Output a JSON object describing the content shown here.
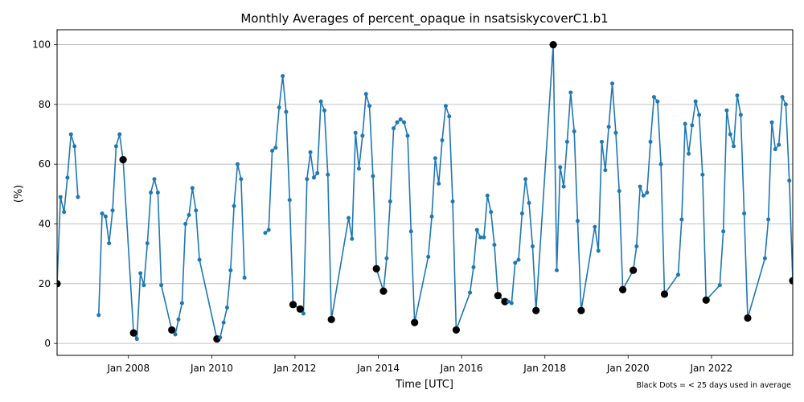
{
  "chart_data": {
    "type": "line",
    "title": "Monthly Averages of percent_opaque in nsatsiskycoverC1.b1",
    "xlabel": "Time [UTC]",
    "ylabel": "(%)",
    "note": "Black Dots = < 25 days used in average",
    "xlim": [
      "2006-04-15",
      "2023-12-15"
    ],
    "ylim": [
      -4,
      105
    ],
    "grid": "horizontal",
    "x_ticks": [
      {
        "date": "2008-01-01",
        "label": "Jan 2008"
      },
      {
        "date": "2010-01-01",
        "label": "Jan 2010"
      },
      {
        "date": "2012-01-01",
        "label": "Jan 2012"
      },
      {
        "date": "2014-01-01",
        "label": "Jan 2014"
      },
      {
        "date": "2016-01-01",
        "label": "Jan 2016"
      },
      {
        "date": "2018-01-01",
        "label": "Jan 2018"
      },
      {
        "date": "2020-01-01",
        "label": "Jan 2020"
      },
      {
        "date": "2022-01-01",
        "label": "Jan 2022"
      }
    ],
    "y_ticks": [
      0,
      20,
      40,
      60,
      80,
      100
    ],
    "line_color": "#1f77b4",
    "flag_color": "#000000",
    "series": [
      {
        "segment": [
          {
            "x": "2006-04-15",
            "y": 20.0,
            "flag": true
          },
          {
            "x": "2006-05-15",
            "y": 49.0
          },
          {
            "x": "2006-06-15",
            "y": 44.0
          },
          {
            "x": "2006-07-15",
            "y": 55.5
          },
          {
            "x": "2006-08-15",
            "y": 70.0
          },
          {
            "x": "2006-09-15",
            "y": 66.0
          },
          {
            "x": "2006-10-15",
            "y": 49.0
          }
        ]
      },
      {
        "segment": [
          {
            "x": "2007-04-15",
            "y": 9.5
          },
          {
            "x": "2007-05-15",
            "y": 43.5
          },
          {
            "x": "2007-06-15",
            "y": 42.5
          },
          {
            "x": "2007-07-15",
            "y": 33.5
          },
          {
            "x": "2007-08-15",
            "y": 44.5
          },
          {
            "x": "2007-09-15",
            "y": 66.0
          },
          {
            "x": "2007-10-15",
            "y": 70.0
          },
          {
            "x": "2007-11-15",
            "y": 61.5,
            "flag": true
          },
          {
            "x": "2008-02-15",
            "y": 3.5,
            "flag": true
          },
          {
            "x": "2008-03-15",
            "y": 1.5
          },
          {
            "x": "2008-04-15",
            "y": 23.5
          },
          {
            "x": "2008-05-15",
            "y": 19.5
          },
          {
            "x": "2008-06-15",
            "y": 33.5
          },
          {
            "x": "2008-07-15",
            "y": 50.5
          },
          {
            "x": "2008-08-15",
            "y": 55.0
          },
          {
            "x": "2008-09-15",
            "y": 50.5
          },
          {
            "x": "2008-10-15",
            "y": 19.5
          },
          {
            "x": "2009-01-15",
            "y": 4.5,
            "flag": true
          },
          {
            "x": "2009-02-15",
            "y": 3.0
          },
          {
            "x": "2009-03-15",
            "y": 8.0
          },
          {
            "x": "2009-04-15",
            "y": 13.5
          },
          {
            "x": "2009-05-15",
            "y": 40.0
          },
          {
            "x": "2009-06-15",
            "y": 43.0
          },
          {
            "x": "2009-07-15",
            "y": 52.0
          },
          {
            "x": "2009-08-15",
            "y": 44.5
          },
          {
            "x": "2009-09-15",
            "y": 28.0
          },
          {
            "x": "2010-02-15",
            "y": 1.5,
            "flag": true
          },
          {
            "x": "2010-03-15",
            "y": 2.0
          },
          {
            "x": "2010-04-15",
            "y": 7.0
          },
          {
            "x": "2010-05-15",
            "y": 12.0
          },
          {
            "x": "2010-06-15",
            "y": 24.5
          },
          {
            "x": "2010-07-15",
            "y": 46.0
          },
          {
            "x": "2010-08-15",
            "y": 60.0
          },
          {
            "x": "2010-09-15",
            "y": 55.0
          },
          {
            "x": "2010-10-15",
            "y": 22.0
          }
        ]
      },
      {
        "segment": [
          {
            "x": "2011-04-15",
            "y": 37.0
          },
          {
            "x": "2011-05-15",
            "y": 38.0
          },
          {
            "x": "2011-06-15",
            "y": 64.5
          },
          {
            "x": "2011-07-15",
            "y": 65.5
          },
          {
            "x": "2011-08-15",
            "y": 79.0
          },
          {
            "x": "2011-09-15",
            "y": 89.5
          },
          {
            "x": "2011-10-15",
            "y": 77.5
          },
          {
            "x": "2011-11-15",
            "y": 48.0
          },
          {
            "x": "2011-12-15",
            "y": 13.0,
            "flag": true
          },
          {
            "x": "2012-02-15",
            "y": 11.5,
            "flag": true
          },
          {
            "x": "2012-03-15",
            "y": 10.0
          },
          {
            "x": "2012-04-15",
            "y": 55.0
          },
          {
            "x": "2012-05-15",
            "y": 64.0
          },
          {
            "x": "2012-06-15",
            "y": 55.5
          },
          {
            "x": "2012-07-15",
            "y": 57.0
          },
          {
            "x": "2012-08-15",
            "y": 81.0
          },
          {
            "x": "2012-09-15",
            "y": 78.0
          },
          {
            "x": "2012-10-15",
            "y": 56.5
          },
          {
            "x": "2012-11-15",
            "y": 8.0,
            "flag": true
          },
          {
            "x": "2013-04-15",
            "y": 42.0
          },
          {
            "x": "2013-05-15",
            "y": 35.0
          },
          {
            "x": "2013-06-15",
            "y": 70.5
          },
          {
            "x": "2013-07-15",
            "y": 58.5
          },
          {
            "x": "2013-08-15",
            "y": 69.5
          },
          {
            "x": "2013-09-15",
            "y": 83.5
          },
          {
            "x": "2013-10-15",
            "y": 79.5
          },
          {
            "x": "2013-11-15",
            "y": 56.0
          },
          {
            "x": "2013-12-15",
            "y": 25.0,
            "flag": true
          },
          {
            "x": "2014-02-15",
            "y": 17.5,
            "flag": true
          },
          {
            "x": "2014-03-15",
            "y": 28.5
          },
          {
            "x": "2014-04-15",
            "y": 47.5
          },
          {
            "x": "2014-05-15",
            "y": 72.0
          },
          {
            "x": "2014-06-15",
            "y": 74.0
          },
          {
            "x": "2014-07-15",
            "y": 75.0
          },
          {
            "x": "2014-08-15",
            "y": 74.0
          },
          {
            "x": "2014-09-15",
            "y": 69.5
          },
          {
            "x": "2014-10-15",
            "y": 37.5
          },
          {
            "x": "2014-11-15",
            "y": 7.0,
            "flag": true
          },
          {
            "x": "2015-03-15",
            "y": 29.0
          },
          {
            "x": "2015-04-15",
            "y": 42.5
          },
          {
            "x": "2015-05-15",
            "y": 62.0
          },
          {
            "x": "2015-06-15",
            "y": 53.5
          },
          {
            "x": "2015-07-15",
            "y": 68.0
          },
          {
            "x": "2015-08-15",
            "y": 79.5
          },
          {
            "x": "2015-09-15",
            "y": 76.0
          },
          {
            "x": "2015-10-15",
            "y": 47.5
          },
          {
            "x": "2015-11-15",
            "y": 4.5,
            "flag": true
          },
          {
            "x": "2016-03-15",
            "y": 17.0
          },
          {
            "x": "2016-04-15",
            "y": 25.5
          },
          {
            "x": "2016-05-15",
            "y": 38.0
          },
          {
            "x": "2016-06-15",
            "y": 35.5
          },
          {
            "x": "2016-07-15",
            "y": 35.5
          },
          {
            "x": "2016-08-15",
            "y": 49.5
          },
          {
            "x": "2016-09-15",
            "y": 44.0
          },
          {
            "x": "2016-10-15",
            "y": 33.0
          },
          {
            "x": "2016-11-15",
            "y": 16.0,
            "flag": true
          },
          {
            "x": "2017-01-15",
            "y": 14.0,
            "flag": true
          },
          {
            "x": "2017-02-15",
            "y": 14.0
          },
          {
            "x": "2017-03-15",
            "y": 13.5
          },
          {
            "x": "2017-04-15",
            "y": 27.0
          },
          {
            "x": "2017-05-15",
            "y": 28.0
          },
          {
            "x": "2017-06-15",
            "y": 43.5
          },
          {
            "x": "2017-07-15",
            "y": 55.0
          },
          {
            "x": "2017-08-15",
            "y": 47.0
          },
          {
            "x": "2017-09-15",
            "y": 32.5
          },
          {
            "x": "2017-10-15",
            "y": 11.0,
            "flag": true
          },
          {
            "x": "2018-03-15",
            "y": 100.0,
            "flag": true
          },
          {
            "x": "2018-04-15",
            "y": 24.5
          },
          {
            "x": "2018-05-15",
            "y": 59.0
          },
          {
            "x": "2018-06-15",
            "y": 52.5
          },
          {
            "x": "2018-07-15",
            "y": 67.5
          },
          {
            "x": "2018-08-15",
            "y": 84.0
          },
          {
            "x": "2018-09-15",
            "y": 71.0
          },
          {
            "x": "2018-10-15",
            "y": 41.0
          },
          {
            "x": "2018-11-15",
            "y": 11.0,
            "flag": true
          },
          {
            "x": "2019-03-15",
            "y": 39.0
          },
          {
            "x": "2019-04-15",
            "y": 31.0
          },
          {
            "x": "2019-05-15",
            "y": 67.5
          },
          {
            "x": "2019-06-15",
            "y": 58.0
          },
          {
            "x": "2019-07-15",
            "y": 72.5
          },
          {
            "x": "2019-08-15",
            "y": 87.0
          },
          {
            "x": "2019-09-15",
            "y": 70.5
          },
          {
            "x": "2019-10-15",
            "y": 51.0
          },
          {
            "x": "2019-11-15",
            "y": 18.0,
            "flag": true
          },
          {
            "x": "2020-02-15",
            "y": 24.5,
            "flag": true
          },
          {
            "x": "2020-03-15",
            "y": 32.5
          },
          {
            "x": "2020-04-15",
            "y": 52.5
          },
          {
            "x": "2020-05-15",
            "y": 49.5
          },
          {
            "x": "2020-06-15",
            "y": 50.5
          },
          {
            "x": "2020-07-15",
            "y": 67.5
          },
          {
            "x": "2020-08-15",
            "y": 82.5
          },
          {
            "x": "2020-09-15",
            "y": 81.0
          },
          {
            "x": "2020-10-15",
            "y": 60.0
          },
          {
            "x": "2020-11-15",
            "y": 16.5,
            "flag": true
          },
          {
            "x": "2021-03-15",
            "y": 23.0
          },
          {
            "x": "2021-04-15",
            "y": 41.5
          },
          {
            "x": "2021-05-15",
            "y": 73.5
          },
          {
            "x": "2021-06-15",
            "y": 63.5
          },
          {
            "x": "2021-07-15",
            "y": 73.0
          },
          {
            "x": "2021-08-15",
            "y": 81.0
          },
          {
            "x": "2021-09-15",
            "y": 76.5
          },
          {
            "x": "2021-10-15",
            "y": 56.5
          },
          {
            "x": "2021-11-15",
            "y": 14.5,
            "flag": true
          },
          {
            "x": "2022-03-15",
            "y": 19.5
          },
          {
            "x": "2022-04-15",
            "y": 37.5
          },
          {
            "x": "2022-05-15",
            "y": 78.0
          },
          {
            "x": "2022-06-15",
            "y": 70.0
          },
          {
            "x": "2022-07-15",
            "y": 66.0
          },
          {
            "x": "2022-08-15",
            "y": 83.0
          },
          {
            "x": "2022-09-15",
            "y": 76.5
          },
          {
            "x": "2022-10-15",
            "y": 43.5
          },
          {
            "x": "2022-11-15",
            "y": 8.5,
            "flag": true
          },
          {
            "x": "2023-04-15",
            "y": 28.5
          },
          {
            "x": "2023-05-15",
            "y": 41.5
          },
          {
            "x": "2023-06-15",
            "y": 74.0
          },
          {
            "x": "2023-07-15",
            "y": 65.0
          },
          {
            "x": "2023-08-15",
            "y": 66.5
          },
          {
            "x": "2023-09-15",
            "y": 82.5
          },
          {
            "x": "2023-10-15",
            "y": 80.0
          },
          {
            "x": "2023-11-15",
            "y": 54.5
          },
          {
            "x": "2023-12-15",
            "y": 21.0,
            "flag": true
          }
        ]
      }
    ]
  }
}
